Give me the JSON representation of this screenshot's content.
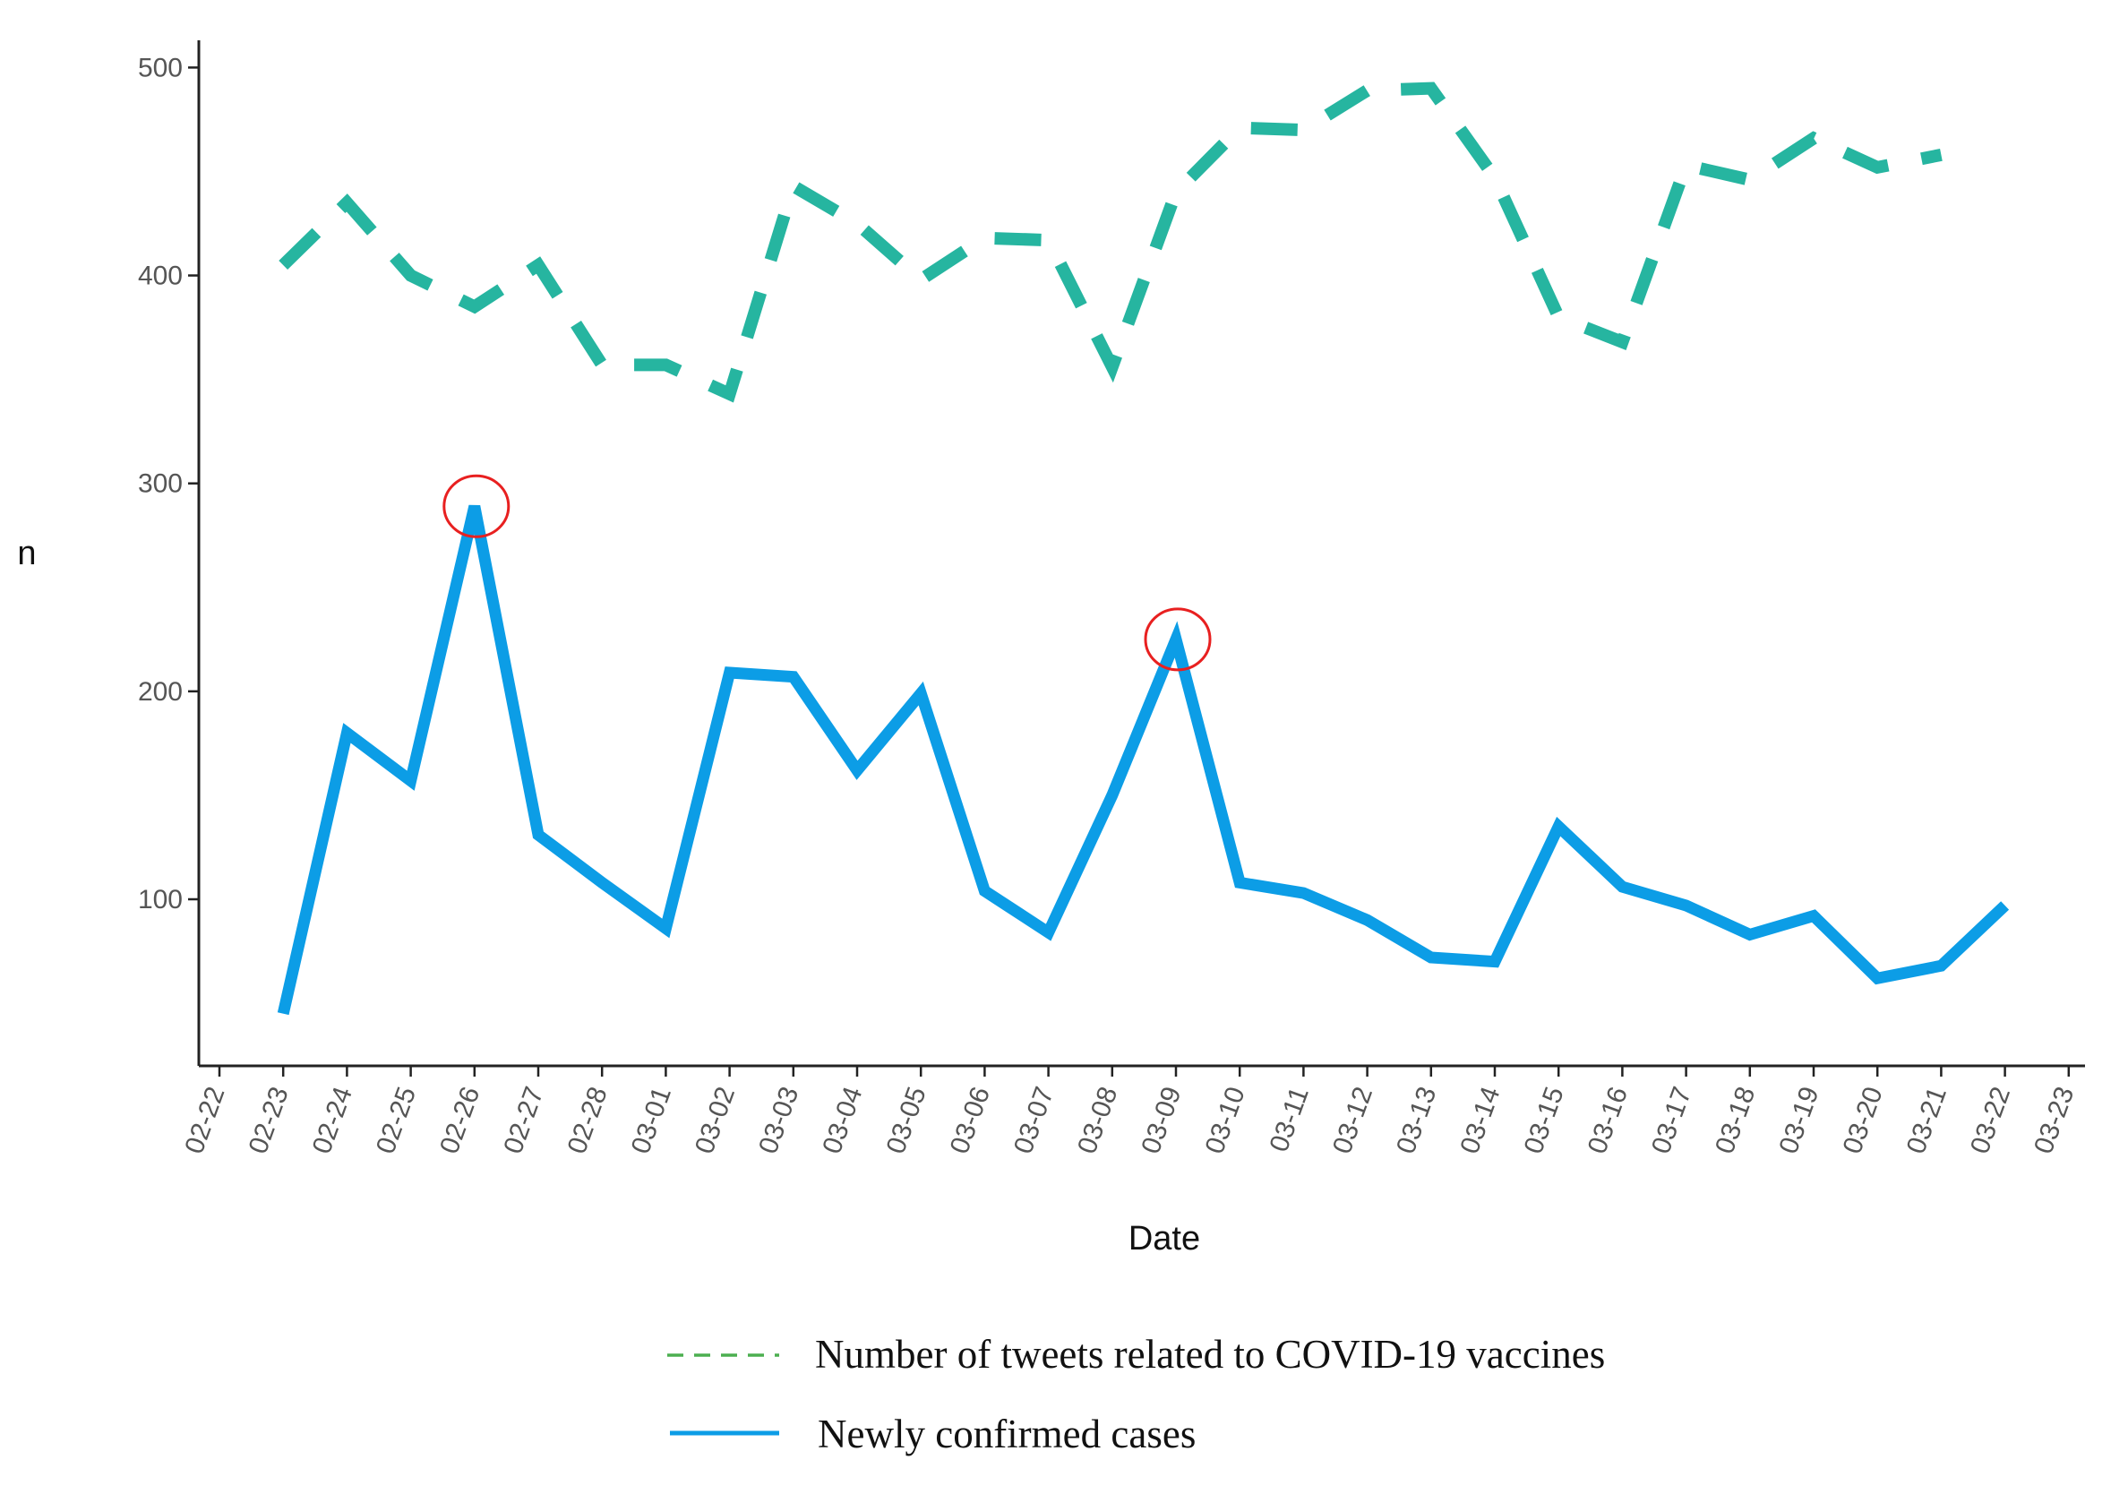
{
  "chart_data": {
    "type": "line",
    "title": "",
    "xlabel": "Date",
    "ylabel": "n",
    "ylim": [
      20,
      510
    ],
    "yticks": [
      100,
      200,
      300,
      400,
      500
    ],
    "grid": false,
    "legend_position": "bottom",
    "categories": [
      "02-22",
      "02-23",
      "02-24",
      "02-25",
      "02-26",
      "02-27",
      "02-28",
      "03-01",
      "03-02",
      "03-03",
      "03-04",
      "03-05",
      "03-06",
      "03-07",
      "03-08",
      "03-09",
      "03-10",
      "03-11",
      "03-12",
      "03-13",
      "03-14",
      "03-15",
      "03-16",
      "03-17",
      "03-18",
      "03-19",
      "03-20",
      "03-21",
      "03-22",
      "03-23"
    ],
    "series": [
      {
        "name": "Number of tweets related to COVID-19 vaccines",
        "style": "dashed",
        "color": "#26B5A0",
        "legend_color": "#4CAF50",
        "values": [
          null,
          405,
          435,
          400,
          385,
          405,
          357,
          357,
          343,
          443,
          425,
          398,
          418,
          417,
          356,
          440,
          471,
          470,
          489,
          490,
          447,
          380,
          368,
          453,
          446,
          466,
          452,
          458,
          null,
          null
        ]
      },
      {
        "name": "Newly confirmed cases",
        "style": "solid",
        "color": "#0C9DE6",
        "legend_color": "#0C9DE6",
        "values": [
          null,
          45,
          180,
          157,
          289,
          131,
          108,
          86,
          209,
          207,
          162,
          199,
          104,
          84,
          150,
          225,
          108,
          103,
          90,
          72,
          70,
          135,
          106,
          97,
          83,
          92,
          62,
          68,
          97,
          null
        ]
      }
    ],
    "annotations": [
      {
        "type": "circle",
        "category": "02-26",
        "value": 289,
        "color": "#E82020"
      },
      {
        "type": "circle",
        "category": "03-09",
        "value": 225,
        "color": "#E82020"
      }
    ]
  }
}
